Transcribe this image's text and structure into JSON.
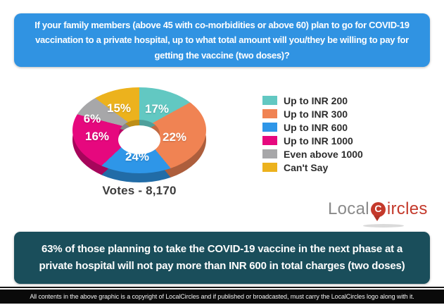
{
  "chart_data": {
    "type": "pie",
    "subtype": "3d-donut",
    "title": "If your family members (above 45 with co-morbidities or above 60) plan to go for COVID-19 vaccination to a private hospital, up to what total amount will you/they be willing to pay for getting the vaccine (two doses)?",
    "categories": [
      "Up to INR 200",
      "Up to INR 300",
      "Up to INR 600",
      "Up to INR 1000",
      "Even above 1000",
      "Can't Say"
    ],
    "values": [
      17,
      22,
      24,
      16,
      6,
      15
    ],
    "labels": [
      "17%",
      "22%",
      "24%",
      "16%",
      "6%",
      "15%"
    ],
    "colors": [
      "#62c8c2",
      "#f08353",
      "#2e96e8",
      "#e6087e",
      "#a7a7a9",
      "#ecb21d"
    ],
    "legend_position": "right",
    "start_angle_deg": 0,
    "votes_label": "Votes - 8,170"
  },
  "question_banner": {
    "bg": "#3093e2"
  },
  "insight_banner": {
    "text": "63% of those planning to take the COVID-19 vaccine in the next phase at a private hospital will not pay more than INR 600 in total charges (two doses)",
    "bg": "#1a4e5b"
  },
  "logo": {
    "text_gray": "Local",
    "text_red": "ircles",
    "icon_letter": "C",
    "color_gray": "#8a8a8a",
    "color_red": "#c4392b"
  },
  "footer": {
    "text": "All contents in the above graphic is a copyright of LocalCircles and if published or broadcasted, must carry the LocalCircles logo along with it.",
    "bg": "#0a0a0a"
  }
}
